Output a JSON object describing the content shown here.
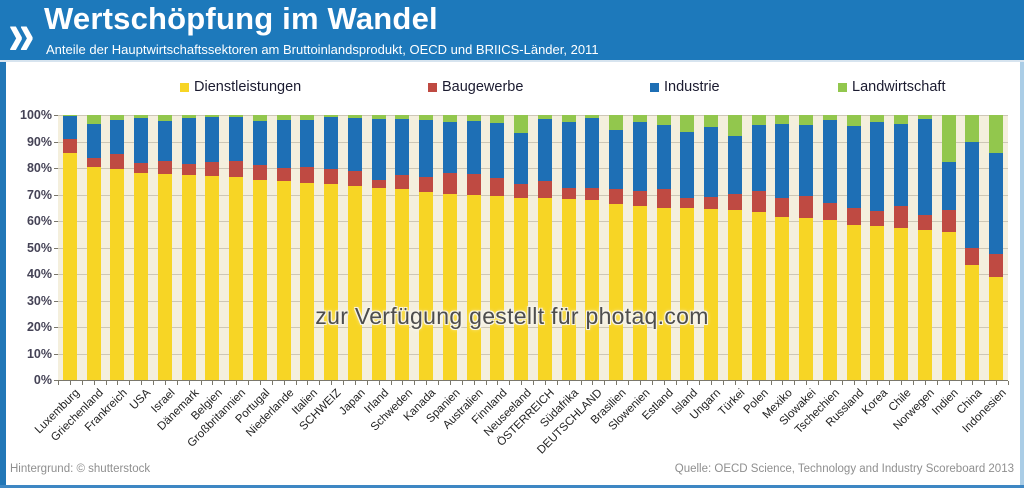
{
  "header": {
    "logo_glyph": "»",
    "title": "Wertschöpfung im Wandel",
    "subtitle": "Anteile der Hauptwirtschaftssektoren am Bruttoinlandsprodukt, OECD und BRIICS-Länder, 2011"
  },
  "legend": {
    "items": [
      {
        "label": "Dienstleistungen",
        "color": "#f7d525"
      },
      {
        "label": "Baugewerbe",
        "color": "#bf4a42"
      },
      {
        "label": "Industrie",
        "color": "#1e6fb5"
      },
      {
        "label": "Landwirtschaft",
        "color": "#92c74d"
      }
    ]
  },
  "chart_data": {
    "type": "bar",
    "stacked": true,
    "unit": "%",
    "ylim": [
      0,
      100
    ],
    "grid": true,
    "legend_position": "top",
    "y_ticks": [
      "100%",
      "90%",
      "80%",
      "70%",
      "60%",
      "50%",
      "40%",
      "30%",
      "20%",
      "10%",
      "0%"
    ],
    "categories": [
      "Luxemburg",
      "Griechenland",
      "Frankreich",
      "USA",
      "Israel",
      "Dänemark",
      "Belgien",
      "Großbritannien",
      "Portugal",
      "Niederlande",
      "Italien",
      "SCHWEIZ",
      "Japan",
      "Irland",
      "Schweden",
      "Kanada",
      "Spanien",
      "Australien",
      "Finnland",
      "Neuseeland",
      "ÖSTERREICH",
      "Südafrika",
      "DEUTSCHLAND",
      "Brasilien",
      "Slowenien",
      "Estland",
      "Island",
      "Ungarn",
      "Türkei",
      "Polen",
      "Mexiko",
      "Slowakei",
      "Tschechien",
      "Russland",
      "Korea",
      "Chile",
      "Norwegen",
      "Indien",
      "China",
      "Indonesien"
    ],
    "series": [
      {
        "name": "Dienstleistungen",
        "color": "#f7d525",
        "values": [
          85.8,
          80.5,
          79.5,
          78.3,
          77.8,
          77.4,
          76.8,
          76.5,
          75.5,
          75.2,
          74.5,
          74.0,
          73.2,
          72.5,
          72.2,
          70.8,
          70.2,
          70.0,
          69.5,
          68.8,
          68.6,
          68.4,
          68.0,
          66.5,
          65.5,
          65.0,
          64.8,
          64.5,
          64.2,
          63.5,
          61.5,
          61.0,
          60.2,
          58.5,
          58.0,
          57.5,
          56.5,
          56.0,
          43.5,
          39.0
        ]
      },
      {
        "name": "Baugewerbe",
        "color": "#bf4a42",
        "values": [
          5.3,
          3.2,
          5.8,
          3.6,
          5.0,
          4.3,
          5.3,
          6.0,
          5.8,
          4.8,
          6.0,
          5.6,
          5.5,
          3.0,
          5.1,
          5.7,
          7.8,
          7.6,
          6.6,
          5.2,
          6.6,
          4.0,
          4.6,
          5.5,
          6.0,
          7.0,
          4.0,
          4.7,
          6.0,
          8.0,
          7.0,
          8.6,
          6.6,
          6.6,
          5.6,
          8.0,
          5.8,
          8.2,
          6.4,
          8.4
        ]
      },
      {
        "name": "Industrie",
        "color": "#1e6fb5",
        "values": [
          8.6,
          13.1,
          12.8,
          16.9,
          15.0,
          17.0,
          17.1,
          16.8,
          16.4,
          18.0,
          17.5,
          19.6,
          20.1,
          22.9,
          21.2,
          21.7,
          19.5,
          20.0,
          21.0,
          19.4,
          23.3,
          25.1,
          26.4,
          22.5,
          26.0,
          24.4,
          24.8,
          26.2,
          21.8,
          24.9,
          28.1,
          26.6,
          31.2,
          30.9,
          33.8,
          31.1,
          36.1,
          18.2,
          40.1,
          38.4
        ]
      },
      {
        "name": "Landwirtschaft",
        "color": "#92c74d",
        "values": [
          0.3,
          3.2,
          1.9,
          1.2,
          2.2,
          1.3,
          0.8,
          0.7,
          2.3,
          2.0,
          2.0,
          0.8,
          1.2,
          1.6,
          1.5,
          1.8,
          2.5,
          2.4,
          2.9,
          6.6,
          1.5,
          2.5,
          1.0,
          5.5,
          2.5,
          3.6,
          6.4,
          4.6,
          8.0,
          3.6,
          3.4,
          3.8,
          2.0,
          4.0,
          2.6,
          3.4,
          1.6,
          17.6,
          10.0,
          14.2
        ]
      }
    ]
  },
  "watermark": "zur Verfügung gestellt für photaq.com",
  "footer": {
    "left": "Hintergrund: © shutterstock",
    "right": "Quelle: OECD Science, Technology and Industry Scoreboard 2013"
  },
  "colors": {
    "header_blue": "#1d79bb",
    "plot_background": "#f4efdd",
    "gridline": "#cdc7b6",
    "frame_blue": "#2277b7"
  }
}
